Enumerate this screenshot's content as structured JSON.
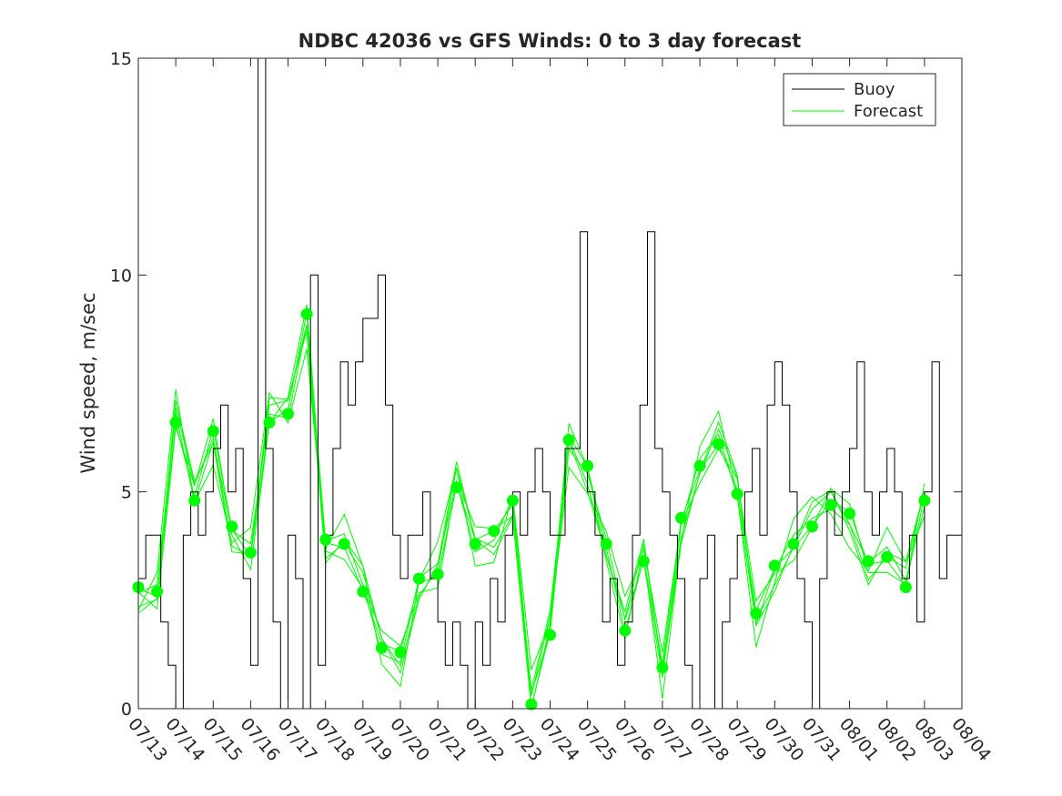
{
  "chart_data": {
    "type": "line",
    "title": "NDBC 42036 vs GFS Winds: 0 to 3 day forecast",
    "xlabel": "",
    "ylabel": "Wind speed, m/sec",
    "xlim": [
      "07/13",
      "08/04"
    ],
    "ylim": [
      0,
      15
    ],
    "yticks": [
      0,
      5,
      10,
      15
    ],
    "xticks": [
      "07/13",
      "07/14",
      "07/15",
      "07/16",
      "07/17",
      "07/18",
      "07/19",
      "07/20",
      "07/21",
      "07/22",
      "07/23",
      "07/24",
      "07/25",
      "07/26",
      "07/27",
      "07/28",
      "07/29",
      "07/30",
      "07/31",
      "08/01",
      "08/02",
      "08/03",
      "08/04"
    ],
    "grid": false,
    "legend_position": "top-right",
    "colors": {
      "buoy": "#000000",
      "forecast": "#00ff00"
    },
    "series": [
      {
        "name": "Buoy",
        "day_offset": [
          0.0,
          0.2,
          0.4,
          0.6,
          0.8,
          1.0,
          1.2,
          1.4,
          1.6,
          1.8,
          2.0,
          2.2,
          2.4,
          2.6,
          2.8,
          3.0,
          3.2,
          3.4,
          3.6,
          3.8,
          4.0,
          4.2,
          4.4,
          4.6,
          4.8,
          5.0,
          5.2,
          5.4,
          5.6,
          5.8,
          6.0,
          6.2,
          6.4,
          6.6,
          6.8,
          7.0,
          7.2,
          7.4,
          7.6,
          7.8,
          8.0,
          8.2,
          8.4,
          8.6,
          8.8,
          9.0,
          9.2,
          9.4,
          9.6,
          9.8,
          10.0,
          10.2,
          10.4,
          10.6,
          10.8,
          11.0,
          11.2,
          11.4,
          11.6,
          11.8,
          12.0,
          12.2,
          12.4,
          12.6,
          12.8,
          13.0,
          13.2,
          13.4,
          13.6,
          13.8,
          14.0,
          14.2,
          14.4,
          14.6,
          14.8,
          15.0,
          15.2,
          15.4,
          15.6,
          15.8,
          16.0,
          16.2,
          16.4,
          16.6,
          16.8,
          17.0,
          17.2,
          17.4,
          17.6,
          17.8,
          18.0,
          18.2,
          18.4,
          18.6,
          18.8,
          19.0,
          19.2,
          19.4,
          19.6,
          19.8,
          20.0,
          20.2,
          20.4,
          20.6,
          20.8,
          21.0,
          21.2,
          21.4,
          21.6,
          21.8,
          22.0
        ],
        "values": [
          3,
          4,
          4,
          2,
          1,
          0,
          4,
          5,
          4,
          5,
          6,
          7,
          5,
          6,
          3,
          1,
          15,
          6,
          2,
          0,
          4,
          3,
          0,
          10,
          1,
          4,
          6,
          8,
          7,
          8,
          9,
          9,
          10,
          7,
          4,
          3,
          4,
          4,
          5,
          3,
          2,
          1,
          2,
          1,
          0,
          2,
          1,
          3,
          2,
          4,
          5,
          4,
          5,
          6,
          5,
          4,
          4,
          6,
          6,
          11,
          5,
          4,
          2,
          3,
          1,
          2,
          4,
          7,
          11,
          6,
          5,
          4,
          3,
          1,
          0,
          3,
          4,
          0,
          2,
          3,
          4,
          5,
          6,
          4,
          7,
          8,
          7,
          5,
          3,
          2,
          0,
          3,
          5,
          4,
          5,
          6,
          8,
          5,
          4,
          5,
          6,
          5,
          3,
          4,
          2,
          5,
          8,
          3,
          4,
          4,
          5
        ]
      },
      {
        "name": "Forecast",
        "dot_day_offset": [
          0.0,
          0.5,
          1.0,
          1.5,
          2.0,
          2.5,
          3.0,
          3.5,
          4.0,
          4.5,
          5.0,
          5.5,
          6.0,
          6.5,
          7.0,
          7.5,
          8.0,
          8.5,
          9.0,
          9.5,
          10.0,
          10.5,
          11.0,
          11.5,
          12.0,
          12.5,
          13.0,
          13.5,
          14.0,
          14.5,
          15.0,
          15.5,
          16.0,
          16.5,
          17.0,
          17.5,
          18.0,
          18.5,
          19.0,
          19.5,
          20.0,
          20.5,
          21.0
        ],
        "dot_values": [
          2.8,
          2.7,
          6.6,
          4.8,
          6.4,
          4.2,
          3.6,
          6.6,
          6.8,
          9.1,
          3.9,
          3.8,
          2.7,
          1.4,
          1.3,
          3.0,
          3.1,
          5.1,
          3.8,
          4.1,
          4.8,
          0.1,
          1.7,
          6.2,
          5.6,
          3.8,
          1.8,
          3.4,
          0.95,
          4.4,
          5.6,
          6.1,
          4.95,
          2.2,
          3.3,
          3.8,
          4.2,
          4.7,
          4.5,
          3.4,
          3.5,
          2.8,
          4.8
        ],
        "forecast_value_offsets": [
          -0.6,
          -0.25,
          0.1,
          0.45,
          0.8,
          -0.4
        ]
      }
    ]
  }
}
